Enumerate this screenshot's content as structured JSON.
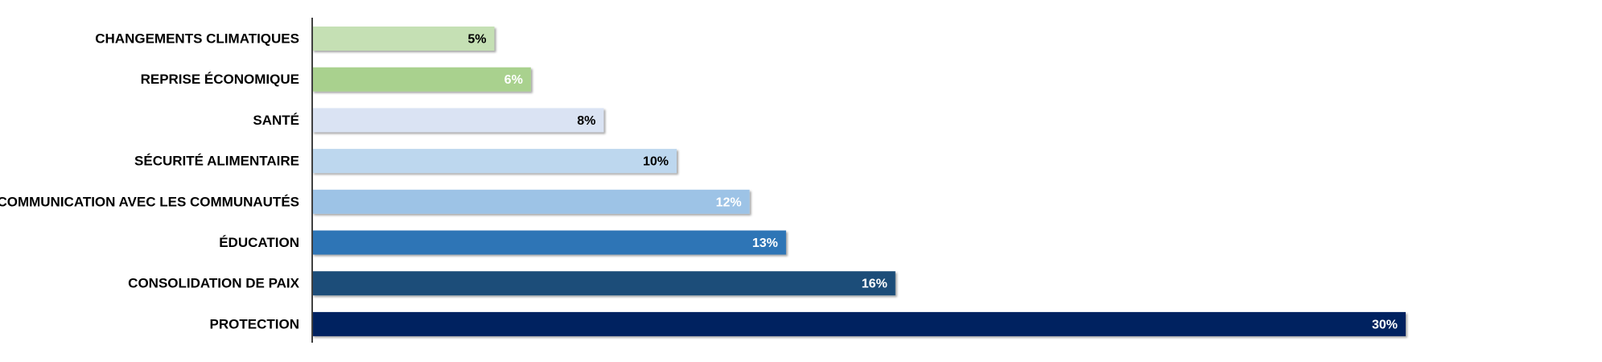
{
  "chart_data": {
    "type": "bar",
    "orientation": "horizontal",
    "categories": [
      "CHANGEMENTS CLIMATIQUES",
      "REPRISE ÉCONOMIQUE",
      "SANTÉ",
      "SÉCURITÉ ALIMENTAIRE",
      "COMMUNICATION AVEC LES COMMUNAUTÉS",
      "ÉDUCATION",
      "CONSOLIDATION DE PAIX",
      "PROTECTION"
    ],
    "values": [
      5,
      6,
      8,
      10,
      12,
      13,
      16,
      30
    ],
    "value_labels": [
      "5%",
      "6%",
      "8%",
      "10%",
      "12%",
      "13%",
      "16%",
      "30%"
    ],
    "unit": "%",
    "bar_colors": [
      "#c5e0b4",
      "#a9d18e",
      "#dae3f3",
      "#bdd7ee",
      "#9dc3e6",
      "#2e75b6",
      "#1f4e79",
      "#002060"
    ],
    "label_colors": [
      "#000000",
      "#ffffff",
      "#000000",
      "#000000",
      "#ffffff",
      "#ffffff",
      "#ffffff",
      "#ffffff"
    ],
    "xlim": [
      0,
      30
    ],
    "title": "",
    "xlabel": "",
    "ylabel": "",
    "grid": false,
    "legend": "none"
  }
}
